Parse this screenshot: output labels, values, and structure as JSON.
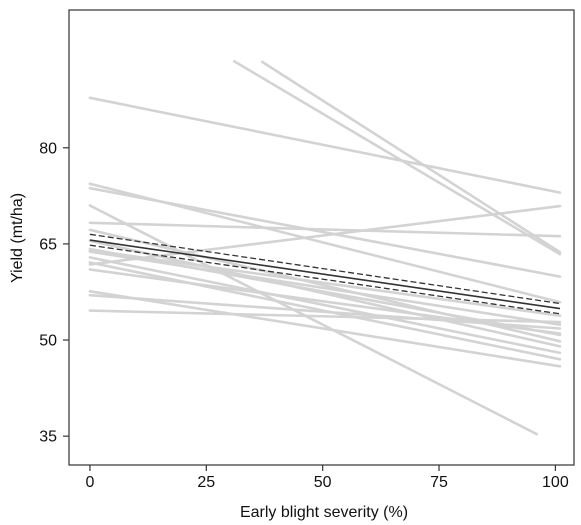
{
  "chart_data": {
    "type": "line",
    "title": "",
    "xlabel": "Early blight severity (%)",
    "ylabel": "Yield (mt/ha)",
    "xlim": [
      -4.5,
      104
    ],
    "ylim": [
      30.5,
      101.5
    ],
    "xticks": [
      0,
      25,
      50,
      75,
      100
    ],
    "yticks": [
      35,
      50,
      65,
      80
    ],
    "xtick_labels": [
      "0",
      "25",
      "50",
      "75",
      "100"
    ],
    "ytick_labels": [
      "35",
      "50",
      "65",
      "80"
    ],
    "grid": false,
    "legend": "none",
    "colors": {
      "site_lines": "#d3d3d3",
      "mean": "#333333",
      "confidence_band": "#333333",
      "axes": "#333333"
    },
    "site_lines": [
      {
        "x": [
          0,
          101
        ],
        "y": [
          87.8,
          73.0
        ]
      },
      {
        "x": [
          31,
          101
        ],
        "y": [
          93.5,
          63.4
        ]
      },
      {
        "x": [
          37,
          101
        ],
        "y": [
          93.4,
          63.7
        ]
      },
      {
        "x": [
          0,
          101
        ],
        "y": [
          74.4,
          55.9
        ]
      },
      {
        "x": [
          0,
          101
        ],
        "y": [
          73.7,
          59.9
        ]
      },
      {
        "x": [
          0,
          96
        ],
        "y": [
          71.0,
          35.3
        ]
      },
      {
        "x": [
          0,
          101
        ],
        "y": [
          68.3,
          66.2
        ]
      },
      {
        "x": [
          0,
          101
        ],
        "y": [
          61.8,
          70.9
        ]
      },
      {
        "x": [
          0,
          101
        ],
        "y": [
          67.2,
          49.8
        ]
      },
      {
        "x": [
          0,
          101
        ],
        "y": [
          65.5,
          49.0
        ]
      },
      {
        "x": [
          0,
          101
        ],
        "y": [
          64.2,
          50.8
        ]
      },
      {
        "x": [
          0,
          101
        ],
        "y": [
          63.8,
          52.4
        ]
      },
      {
        "x": [
          0,
          101
        ],
        "y": [
          62.9,
          48.0
        ]
      },
      {
        "x": [
          0,
          101
        ],
        "y": [
          62.1,
          47.0
        ]
      },
      {
        "x": [
          0,
          101
        ],
        "y": [
          57.6,
          45.9
        ]
      },
      {
        "x": [
          0,
          101
        ],
        "y": [
          57.0,
          51.8
        ]
      },
      {
        "x": [
          0,
          101
        ],
        "y": [
          54.6,
          52.8
        ]
      },
      {
        "x": [
          0,
          101
        ],
        "y": [
          64.0,
          53.8
        ]
      },
      {
        "x": [
          0,
          101
        ],
        "y": [
          61.0,
          51.0
        ]
      }
    ],
    "series": [
      {
        "style": "solid",
        "x": [
          0,
          101
        ],
        "y": [
          65.6,
          54.9
        ]
      },
      {
        "style": "dashed",
        "x": [
          0,
          101
        ],
        "y": [
          66.5,
          55.7
        ]
      },
      {
        "style": "dashed",
        "x": [
          0,
          101
        ],
        "y": [
          64.8,
          54.1
        ]
      }
    ]
  }
}
